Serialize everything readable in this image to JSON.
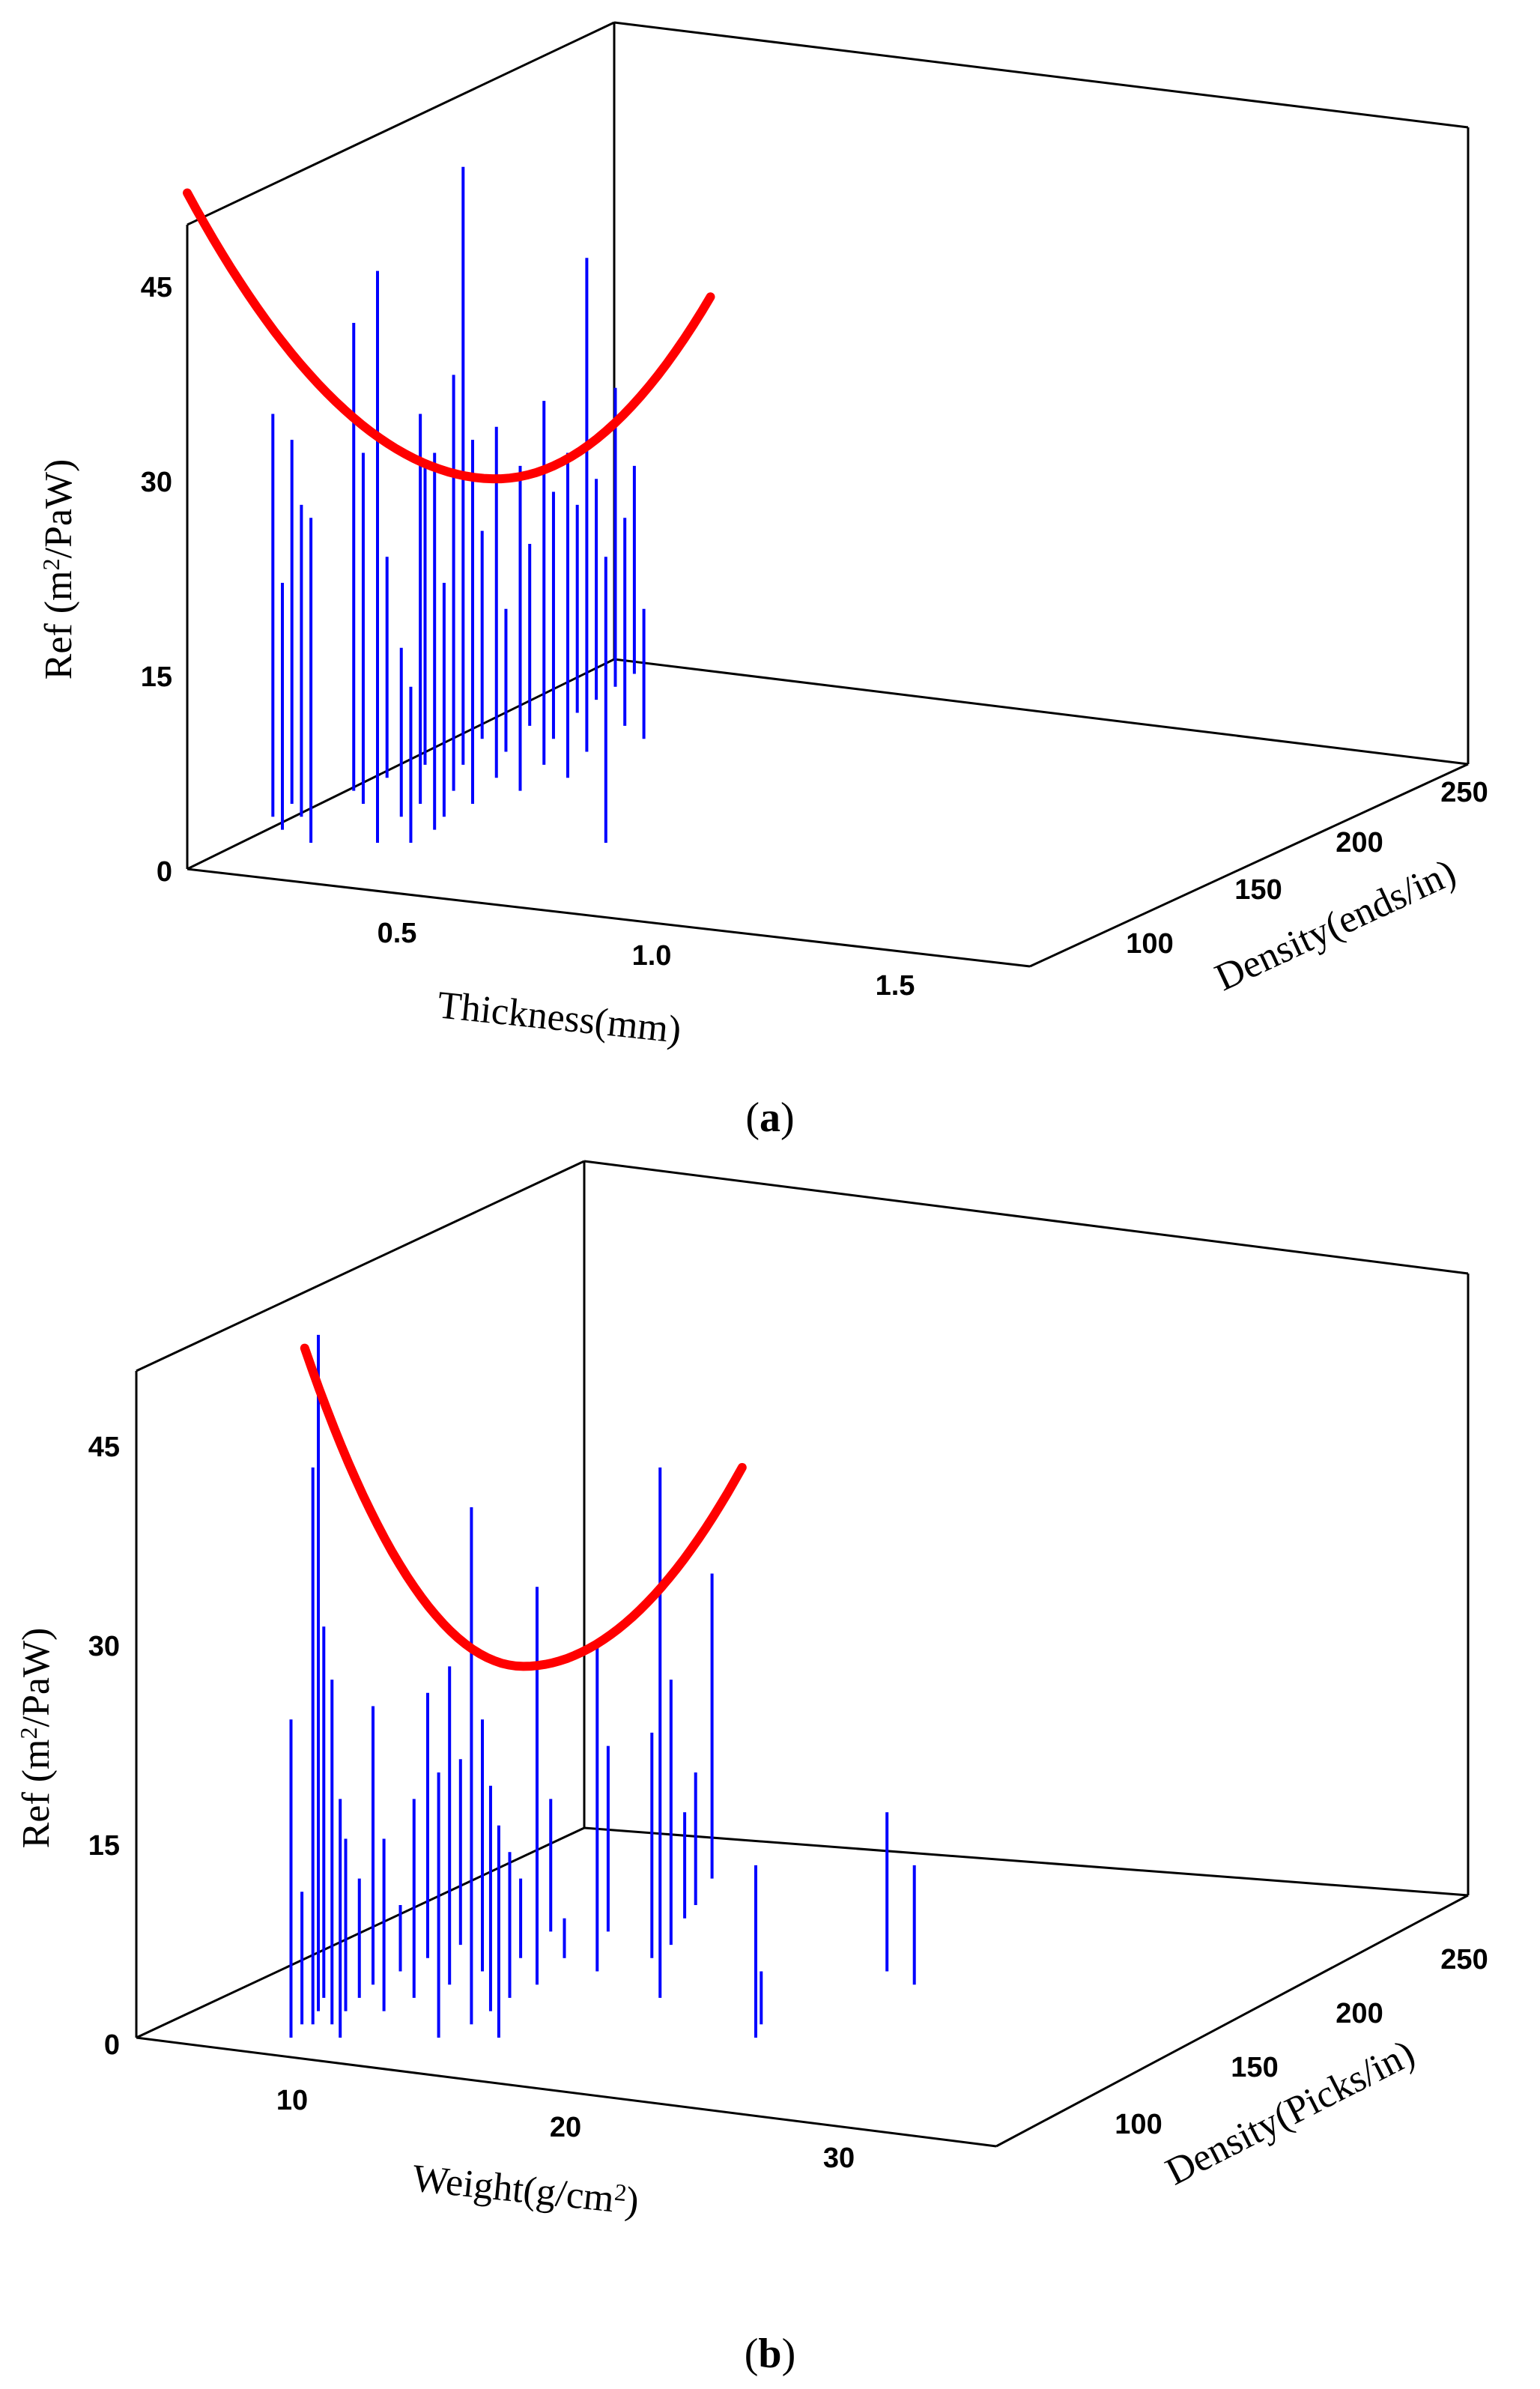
{
  "chart_data": [
    {
      "panel": "(a)",
      "panel_letter": "a",
      "type": "3d-line-scatter",
      "xlabel": "Thickness(mm)",
      "ylabel_main": "Ref (m",
      "ylabel_sup": "2",
      "ylabel_end": "/PaW)",
      "zlabel": "Density(ends/in)",
      "x_ticks": [
        "0.5",
        "1.0",
        "1.5"
      ],
      "y_ticks": [
        "0",
        "15",
        "30",
        "45"
      ],
      "z_ticks": [
        "100",
        "150",
        "200",
        "250"
      ],
      "curve_color": "#ff0000",
      "stem_color": "#0000ff",
      "fit_curve": {
        "x_start": 0.2,
        "x_min": 0.85,
        "x_end": 1.3,
        "y_start": 50,
        "y_min": 28,
        "y_end": 42
      },
      "stems": [
        {
          "x": 0.38,
          "ylo": 2,
          "yhi": 33
        },
        {
          "x": 0.4,
          "ylo": 1,
          "yhi": 20
        },
        {
          "x": 0.42,
          "ylo": 3,
          "yhi": 31
        },
        {
          "x": 0.44,
          "ylo": 2,
          "yhi": 26
        },
        {
          "x": 0.46,
          "ylo": 0,
          "yhi": 25
        },
        {
          "x": 0.55,
          "ylo": 4,
          "yhi": 40
        },
        {
          "x": 0.57,
          "ylo": 3,
          "yhi": 30
        },
        {
          "x": 0.6,
          "ylo": 0,
          "yhi": 44
        },
        {
          "x": 0.62,
          "ylo": 5,
          "yhi": 22
        },
        {
          "x": 0.65,
          "ylo": 2,
          "yhi": 15
        },
        {
          "x": 0.67,
          "ylo": 0,
          "yhi": 12
        },
        {
          "x": 0.69,
          "ylo": 3,
          "yhi": 33
        },
        {
          "x": 0.7,
          "ylo": 6,
          "yhi": 29
        },
        {
          "x": 0.72,
          "ylo": 1,
          "yhi": 30
        },
        {
          "x": 0.74,
          "ylo": 2,
          "yhi": 20
        },
        {
          "x": 0.76,
          "ylo": 4,
          "yhi": 36
        },
        {
          "x": 0.78,
          "ylo": 6,
          "yhi": 52
        },
        {
          "x": 0.8,
          "ylo": 3,
          "yhi": 31
        },
        {
          "x": 0.82,
          "ylo": 8,
          "yhi": 24
        },
        {
          "x": 0.85,
          "ylo": 5,
          "yhi": 32
        },
        {
          "x": 0.87,
          "ylo": 7,
          "yhi": 18
        },
        {
          "x": 0.9,
          "ylo": 4,
          "yhi": 29
        },
        {
          "x": 0.92,
          "ylo": 9,
          "yhi": 23
        },
        {
          "x": 0.95,
          "ylo": 6,
          "yhi": 34
        },
        {
          "x": 0.97,
          "ylo": 8,
          "yhi": 27
        },
        {
          "x": 1.0,
          "ylo": 5,
          "yhi": 30
        },
        {
          "x": 1.02,
          "ylo": 10,
          "yhi": 26
        },
        {
          "x": 1.04,
          "ylo": 7,
          "yhi": 45
        },
        {
          "x": 1.06,
          "ylo": 11,
          "yhi": 28
        },
        {
          "x": 1.08,
          "ylo": 0,
          "yhi": 22
        },
        {
          "x": 1.1,
          "ylo": 12,
          "yhi": 35
        },
        {
          "x": 1.12,
          "ylo": 9,
          "yhi": 25
        },
        {
          "x": 1.14,
          "ylo": 13,
          "yhi": 29
        },
        {
          "x": 1.16,
          "ylo": 8,
          "yhi": 18
        }
      ]
    },
    {
      "panel": "(b)",
      "panel_letter": "b",
      "type": "3d-line-scatter",
      "xlabel_main": "Weight(g/cm",
      "xlabel_sup": "2",
      "xlabel_end": ")",
      "ylabel_main": "Ref (m",
      "ylabel_sup": "2",
      "ylabel_end": "/PaW)",
      "zlabel": "Density(Picks/in)",
      "x_ticks": [
        "10",
        "20",
        "30"
      ],
      "y_ticks": [
        "0",
        "15",
        "30",
        "45"
      ],
      "z_ticks": [
        "100",
        "150",
        "200",
        "250"
      ],
      "curve_color": "#ff0000",
      "stem_color": "#0000ff",
      "fit_curve": {
        "x_start": 8.5,
        "x_min": 16.5,
        "x_end": 24.5,
        "y_start": 52,
        "y_min": 28,
        "y_end": 43
      },
      "stems": [
        {
          "x": 8.0,
          "ylo": 0,
          "yhi": 24
        },
        {
          "x": 8.4,
          "ylo": 1,
          "yhi": 11
        },
        {
          "x": 8.8,
          "ylo": 1,
          "yhi": 43
        },
        {
          "x": 9.0,
          "ylo": 2,
          "yhi": 53
        },
        {
          "x": 9.2,
          "ylo": 3,
          "yhi": 31
        },
        {
          "x": 9.5,
          "ylo": 1,
          "yhi": 27
        },
        {
          "x": 9.8,
          "ylo": 0,
          "yhi": 18
        },
        {
          "x": 10.0,
          "ylo": 2,
          "yhi": 15
        },
        {
          "x": 10.5,
          "ylo": 3,
          "yhi": 12
        },
        {
          "x": 11.0,
          "ylo": 4,
          "yhi": 25
        },
        {
          "x": 11.4,
          "ylo": 2,
          "yhi": 15
        },
        {
          "x": 12.0,
          "ylo": 5,
          "yhi": 10
        },
        {
          "x": 12.5,
          "ylo": 3,
          "yhi": 18
        },
        {
          "x": 13.0,
          "ylo": 6,
          "yhi": 26
        },
        {
          "x": 13.4,
          "ylo": 0,
          "yhi": 20
        },
        {
          "x": 13.8,
          "ylo": 4,
          "yhi": 28
        },
        {
          "x": 14.2,
          "ylo": 7,
          "yhi": 21
        },
        {
          "x": 14.6,
          "ylo": 1,
          "yhi": 40
        },
        {
          "x": 15.0,
          "ylo": 5,
          "yhi": 24
        },
        {
          "x": 15.3,
          "ylo": 2,
          "yhi": 19
        },
        {
          "x": 15.6,
          "ylo": 0,
          "yhi": 16
        },
        {
          "x": 16.0,
          "ylo": 3,
          "yhi": 14
        },
        {
          "x": 16.4,
          "ylo": 6,
          "yhi": 12
        },
        {
          "x": 17.0,
          "ylo": 4,
          "yhi": 34
        },
        {
          "x": 17.5,
          "ylo": 8,
          "yhi": 18
        },
        {
          "x": 18.0,
          "ylo": 6,
          "yhi": 9
        },
        {
          "x": 19.2,
          "ylo": 5,
          "yhi": 30
        },
        {
          "x": 19.6,
          "ylo": 8,
          "yhi": 22
        },
        {
          "x": 21.2,
          "ylo": 6,
          "yhi": 23
        },
        {
          "x": 21.5,
          "ylo": 3,
          "yhi": 43
        },
        {
          "x": 21.9,
          "ylo": 7,
          "yhi": 27
        },
        {
          "x": 22.4,
          "ylo": 9,
          "yhi": 17
        },
        {
          "x": 22.8,
          "ylo": 10,
          "yhi": 20
        },
        {
          "x": 23.4,
          "ylo": 12,
          "yhi": 35
        },
        {
          "x": 25.0,
          "ylo": 0,
          "yhi": 13
        },
        {
          "x": 25.2,
          "ylo": 1,
          "yhi": 5
        },
        {
          "x": 29.8,
          "ylo": 5,
          "yhi": 17
        },
        {
          "x": 30.8,
          "ylo": 4,
          "yhi": 13
        }
      ]
    }
  ]
}
